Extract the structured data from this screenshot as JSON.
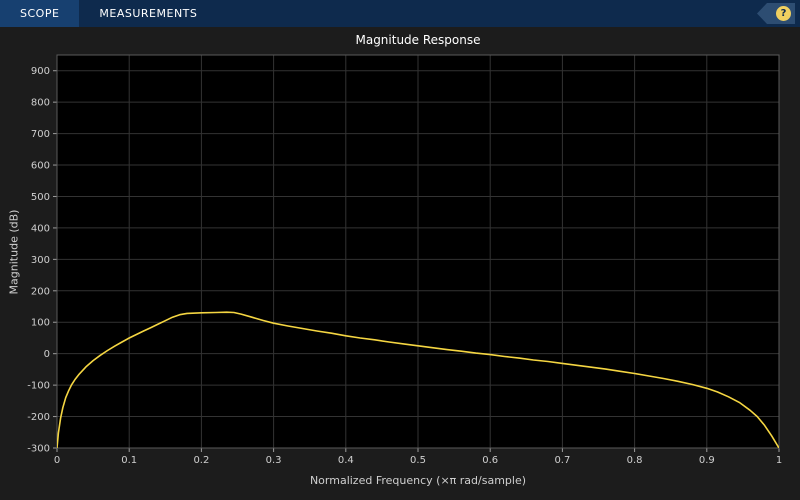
{
  "toolbar": {
    "tabs": [
      {
        "label": "SCOPE"
      },
      {
        "label": "MEASUREMENTS"
      }
    ],
    "help_label": "?"
  },
  "chart": {
    "title": "Magnitude Response",
    "xlabel": "Normalized Frequency (×π rad/sample)",
    "ylabel": "Magnitude (dB)"
  },
  "colors": {
    "toolbar_bg": "#0e2a4d",
    "figure_bg": "#1c1c1c",
    "plot_bg": "#000000",
    "grid": "#333333",
    "line": "#f5d642",
    "text": "#cfcfcf"
  },
  "chart_data": {
    "type": "line",
    "title": "Magnitude Response",
    "xlabel": "Normalized Frequency (×π rad/sample)",
    "ylabel": "Magnitude (dB)",
    "xlim": [
      0,
      1
    ],
    "ylim": [
      -300,
      950
    ],
    "x_ticks": [
      0,
      0.1,
      0.2,
      0.3,
      0.4,
      0.5,
      0.6,
      0.7,
      0.8,
      0.9,
      1
    ],
    "y_ticks": [
      -300,
      -200,
      -100,
      0,
      100,
      200,
      300,
      400,
      500,
      600,
      700,
      800,
      900
    ],
    "grid": true,
    "legend": "none",
    "series": [
      {
        "name": "Magnitude (dB)",
        "color": "#f5d642",
        "x": [
          0,
          0.002,
          0.005,
          0.008,
          0.012,
          0.016,
          0.02,
          0.025,
          0.03,
          0.04,
          0.05,
          0.06,
          0.07,
          0.08,
          0.09,
          0.1,
          0.11,
          0.12,
          0.13,
          0.14,
          0.15,
          0.16,
          0.17,
          0.18,
          0.2,
          0.22,
          0.235,
          0.245,
          0.255,
          0.27,
          0.285,
          0.3,
          0.32,
          0.34,
          0.36,
          0.38,
          0.4,
          0.42,
          0.44,
          0.46,
          0.48,
          0.5,
          0.52,
          0.54,
          0.56,
          0.58,
          0.6,
          0.62,
          0.64,
          0.66,
          0.68,
          0.7,
          0.72,
          0.74,
          0.76,
          0.78,
          0.8,
          0.82,
          0.84,
          0.86,
          0.88,
          0.9,
          0.915,
          0.93,
          0.945,
          0.96,
          0.97,
          0.98,
          0.99,
          1.0
        ],
        "y": [
          -300,
          -252,
          -205,
          -172,
          -140,
          -118,
          -100,
          -82,
          -67,
          -42,
          -22,
          -5,
          10,
          24,
          37,
          50,
          61,
          72,
          83,
          94,
          105,
          116,
          124,
          128,
          130,
          131,
          132,
          131,
          126,
          116,
          106,
          97,
          88,
          80,
          72,
          65,
          57,
          50,
          44,
          37,
          31,
          25,
          19,
          13,
          8,
          2,
          -3,
          -9,
          -14,
          -20,
          -25,
          -31,
          -37,
          -43,
          -49,
          -56,
          -63,
          -71,
          -79,
          -88,
          -98,
          -110,
          -122,
          -137,
          -155,
          -180,
          -200,
          -228,
          -262,
          -300
        ]
      }
    ]
  }
}
